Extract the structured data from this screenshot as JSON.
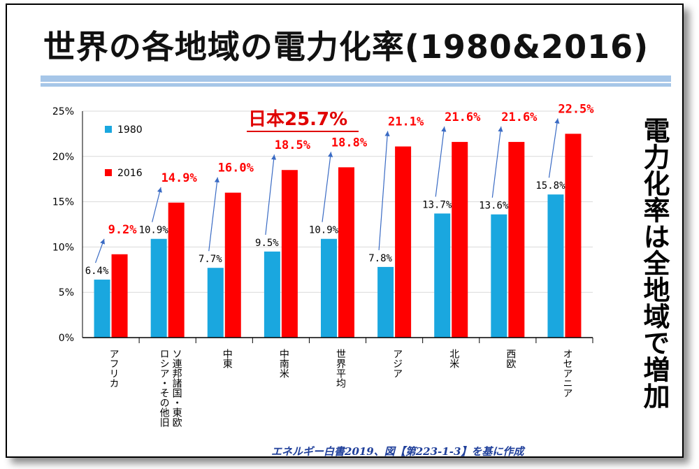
{
  "title": "世界の各地域の電力化率(1980&2016)",
  "side_caption": "電力化率は全地域で増加",
  "source": "エネルギー白書2019、図【第223-1-3】を基に作成",
  "japan_annotation": "日本25.7%",
  "colors": {
    "s1980": "#1aa7df",
    "s2016": "#ff0000",
    "arrow": "#3a6bc4",
    "label2016": "#ff0000",
    "japan": "#e00000"
  },
  "chart_data": {
    "type": "bar",
    "categories": [
      "アフリカ",
      "ロシア・その他旧ソ連邦諸国・東欧",
      "中東",
      "中南米",
      "世界平均",
      "アジア",
      "北米",
      "西欧",
      "オセアニア"
    ],
    "category_lines": [
      [
        "アフリカ"
      ],
      [
        "ロシア・その他旧",
        "ソ連邦諸国・東欧"
      ],
      [
        "中東"
      ],
      [
        "中南米"
      ],
      [
        "世界平均"
      ],
      [
        "アジア"
      ],
      [
        "北米"
      ],
      [
        "西欧"
      ],
      [
        "オセアニア"
      ]
    ],
    "series": [
      {
        "name": "1980",
        "values": [
          6.4,
          10.9,
          7.7,
          9.5,
          10.9,
          7.8,
          13.7,
          13.6,
          15.8
        ],
        "labels": [
          "6.4%",
          "10.9%",
          "7.7%",
          "9.5%",
          "10.9%",
          "7.8%",
          "13.7%",
          "13.6%",
          "15.8%"
        ]
      },
      {
        "name": "2016",
        "values": [
          9.2,
          14.9,
          16.0,
          18.5,
          18.8,
          21.1,
          21.6,
          21.6,
          22.5
        ],
        "labels": [
          "9.2%",
          "14.9%",
          "16.0%",
          "18.5%",
          "18.8%",
          "21.1%",
          "21.6%",
          "21.6%",
          "22.5%"
        ]
      }
    ],
    "y_ticks": [
      "0%",
      "5%",
      "10%",
      "15%",
      "20%",
      "25%"
    ],
    "ylim": [
      0,
      25
    ],
    "legend_position": "top-left",
    "grid": true
  }
}
